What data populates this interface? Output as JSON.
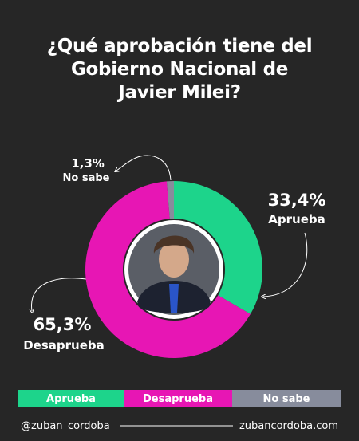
{
  "chart_data": {
    "type": "donut",
    "title": "¿Qué aprobación tiene del Gobierno Nacional de Javier Milei?",
    "categories": [
      "Aprueba",
      "Desaprueba",
      "No sabe"
    ],
    "values": [
      33.4,
      65.3,
      1.3
    ],
    "value_labels": [
      "33,4%",
      "65,3%",
      "1,3%"
    ],
    "colors": [
      "#1dd48b",
      "#e716b4",
      "#878c9c"
    ]
  },
  "footer": {
    "handle": "@zuban_cordoba",
    "website": "zubancordoba.com"
  }
}
